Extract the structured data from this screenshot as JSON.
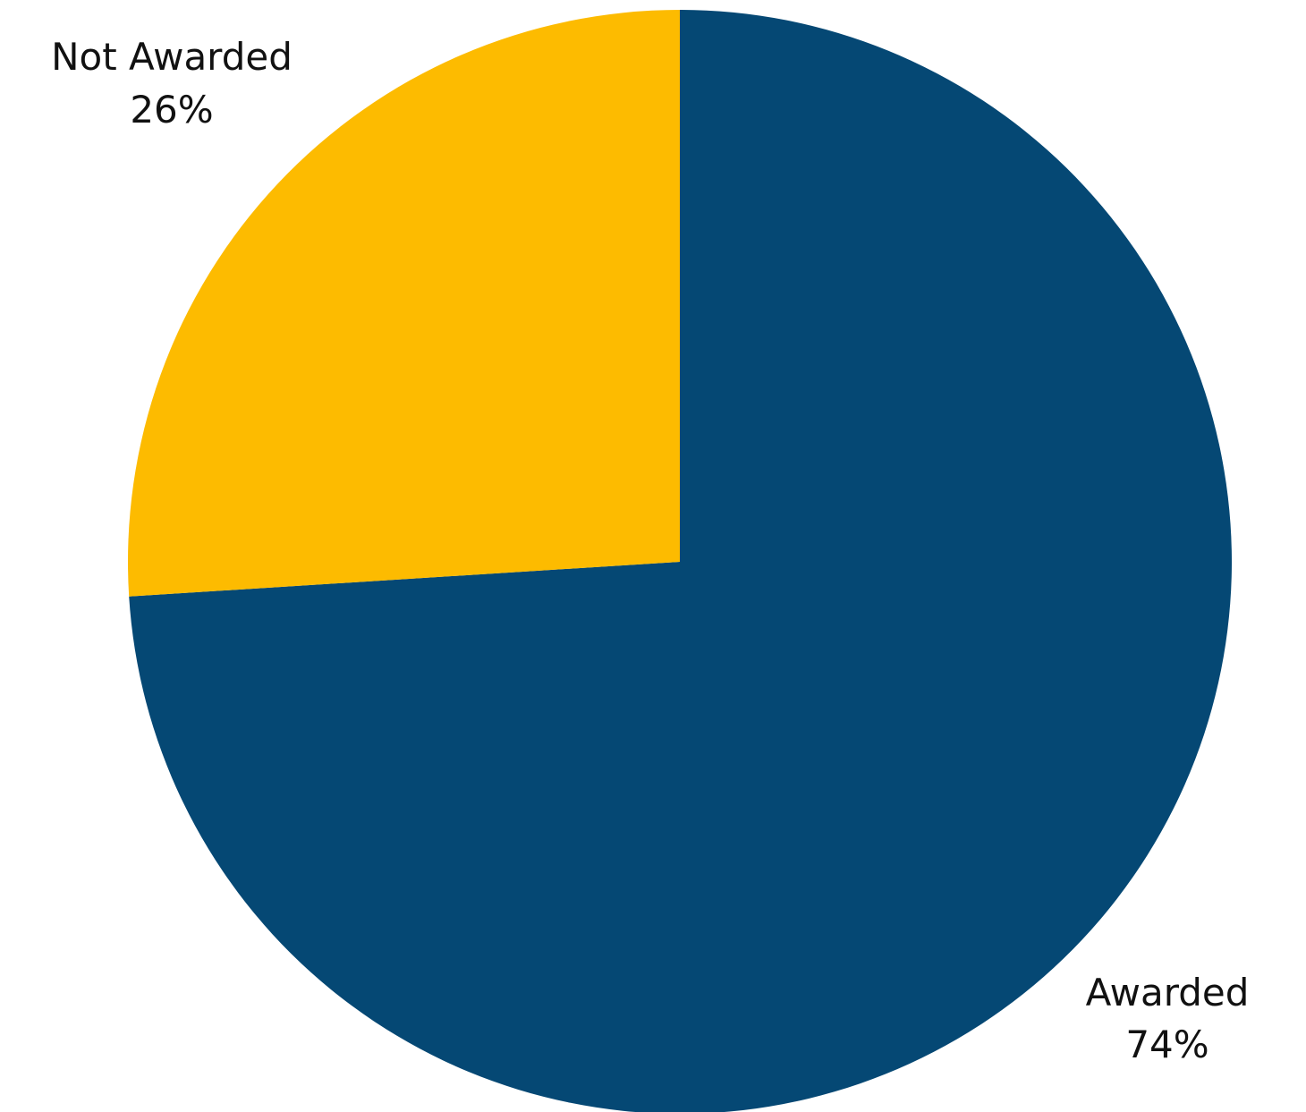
{
  "chart_data": {
    "type": "pie",
    "slices": [
      {
        "label": "Awarded",
        "value": 74,
        "display": "74%",
        "color": "#054874"
      },
      {
        "label": "Not Awarded",
        "value": 26,
        "display": "26%",
        "color": "#FDBB00"
      }
    ]
  }
}
